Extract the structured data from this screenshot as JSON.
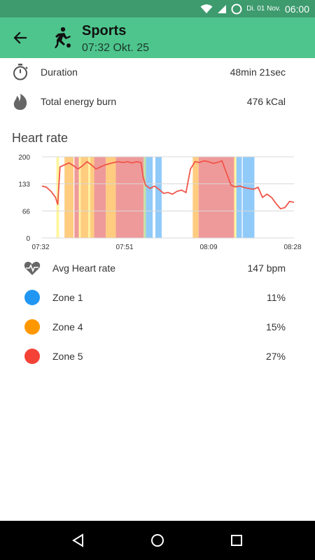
{
  "status_bar": {
    "date": "Di. 01 Nov.",
    "time": "06:00",
    "icons": [
      "wifi-icon",
      "signal-icon",
      "do-not-disturb-icon"
    ]
  },
  "header": {
    "title": "Sports",
    "subtitle": "07:32 Okt. 25",
    "back_icon": "arrow-back-icon",
    "activity_icon": "soccer-player-icon"
  },
  "summary": [
    {
      "icon": "stopwatch-icon",
      "label": "Duration",
      "value": "48min 21sec"
    },
    {
      "icon": "flame-icon",
      "label": "Total energy burn",
      "value": "476 kCal"
    }
  ],
  "heart_rate": {
    "title": "Heart rate",
    "avg_label": "Avg Heart rate",
    "avg_value": "147 bpm",
    "zones": [
      {
        "label": "Zone 1",
        "value": "11%",
        "color": "#2196f3"
      },
      {
        "label": "Zone 4",
        "value": "15%",
        "color": "#ff9800"
      },
      {
        "label": "Zone 5",
        "value": "27%",
        "color": "#f44336"
      }
    ]
  },
  "chart_data": {
    "type": "line",
    "y_ticks": [
      "200",
      "133",
      "66",
      "0"
    ],
    "x_ticks": [
      "07:32",
      "07:51",
      "08:09",
      "08:28"
    ],
    "ylim": [
      0,
      200
    ],
    "line_color": "#f0554a",
    "series": [
      {
        "x_minutes": [
          0,
          1,
          2,
          3,
          3.5,
          4,
          5,
          6,
          7,
          8,
          9,
          10,
          11,
          12,
          13,
          14,
          15,
          16,
          17,
          18,
          19,
          20,
          21,
          22,
          22.5,
          23,
          24,
          25,
          26,
          27,
          28,
          29,
          30,
          31,
          32,
          33,
          34,
          35,
          36,
          37,
          38,
          39,
          40,
          41,
          42,
          43,
          44,
          45,
          46,
          47,
          48,
          49,
          50,
          51,
          52,
          53,
          54,
          55,
          56
        ],
        "values": [
          128,
          125,
          115,
          100,
          82,
          175,
          180,
          185,
          178,
          170,
          178,
          188,
          180,
          170,
          175,
          180,
          183,
          186,
          188,
          186,
          188,
          185,
          188,
          186,
          150,
          130,
          122,
          128,
          120,
          110,
          112,
          108,
          115,
          118,
          112,
          170,
          188,
          186,
          190,
          188,
          184,
          186,
          190,
          160,
          130,
          126,
          128,
          124,
          122,
          120,
          125,
          100,
          108,
          100,
          85,
          72,
          75,
          90,
          88
        ]
      }
    ],
    "zone_bands": [
      {
        "start": 3.2,
        "end": 3.8,
        "zone": "yellow"
      },
      {
        "start": 5,
        "end": 7,
        "zone": "orange"
      },
      {
        "start": 7.2,
        "end": 8.2,
        "zone": "red"
      },
      {
        "start": 8.2,
        "end": 8.6,
        "zone": "yellow"
      },
      {
        "start": 8.6,
        "end": 10.3,
        "zone": "orange"
      },
      {
        "start": 10.3,
        "end": 10.7,
        "zone": "yellow"
      },
      {
        "start": 10.7,
        "end": 11.6,
        "zone": "orange"
      },
      {
        "start": 11.6,
        "end": 14.2,
        "zone": "red"
      },
      {
        "start": 14.2,
        "end": 16.4,
        "zone": "orange"
      },
      {
        "start": 16.4,
        "end": 22.6,
        "zone": "red"
      },
      {
        "start": 22.6,
        "end": 23.1,
        "zone": "green"
      },
      {
        "start": 23.1,
        "end": 24.6,
        "zone": "blue"
      },
      {
        "start": 25.2,
        "end": 26.6,
        "zone": "blue"
      },
      {
        "start": 33.5,
        "end": 34.8,
        "zone": "orange"
      },
      {
        "start": 34.8,
        "end": 42.7,
        "zone": "red"
      },
      {
        "start": 42.7,
        "end": 43.2,
        "zone": "yellow"
      },
      {
        "start": 43.2,
        "end": 44.4,
        "zone": "blue"
      },
      {
        "start": 44.6,
        "end": 47.2,
        "zone": "blue"
      }
    ],
    "zone_colors": {
      "yellow": "#fff59d",
      "orange": "#ffcc80",
      "red": "#ef9a9a",
      "green": "#c5e1a5",
      "blue": "#90caf9"
    }
  },
  "nav": {
    "back": "nav-back-icon",
    "home": "nav-home-icon",
    "recents": "nav-recents-icon"
  }
}
